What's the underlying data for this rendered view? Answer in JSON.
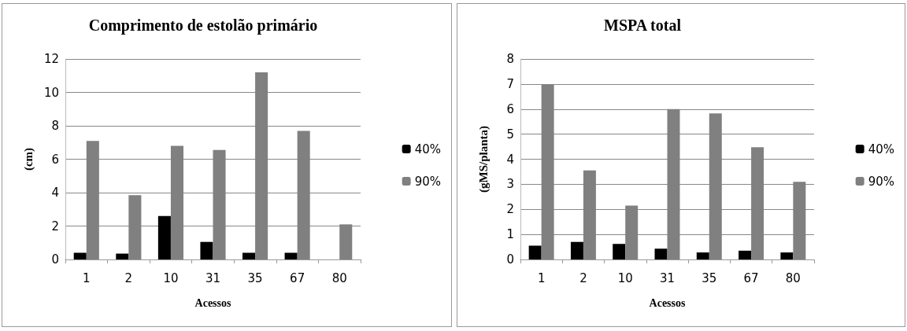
{
  "chart_data": [
    {
      "type": "bar",
      "title": "Comprimento de estolão primário",
      "xlabel": "Acessos",
      "ylabel": "(cm)",
      "categories": [
        "1",
        "2",
        "10",
        "31",
        "35",
        "67",
        "80"
      ],
      "series": [
        {
          "name": "40%",
          "color": "#000000",
          "values": [
            0.4,
            0.35,
            2.6,
            1.05,
            0.4,
            0.4,
            null
          ]
        },
        {
          "name": "90%",
          "color": "#808080",
          "values": [
            7.1,
            3.85,
            6.8,
            6.55,
            11.2,
            7.7,
            2.1
          ]
        }
      ],
      "ylim": [
        0,
        12
      ],
      "yticks": [
        0,
        2,
        4,
        6,
        8,
        10,
        12
      ],
      "grid": "y",
      "legend": "right"
    },
    {
      "type": "bar",
      "title": "MSPA total",
      "xlabel": "Acessos",
      "ylabel": "(gMS/planta)",
      "categories": [
        "1",
        "2",
        "10",
        "31",
        "35",
        "67",
        "80"
      ],
      "series": [
        {
          "name": "40%",
          "color": "#000000",
          "values": [
            0.55,
            0.7,
            0.62,
            0.43,
            0.28,
            0.35,
            0.28
          ]
        },
        {
          "name": "90%",
          "color": "#808080",
          "values": [
            7.0,
            3.55,
            2.15,
            6.0,
            5.83,
            4.48,
            3.1
          ]
        }
      ],
      "ylim": [
        0,
        8
      ],
      "yticks": [
        0,
        1,
        2,
        3,
        4,
        5,
        6,
        7,
        8
      ],
      "grid": "y",
      "legend": "right"
    }
  ]
}
